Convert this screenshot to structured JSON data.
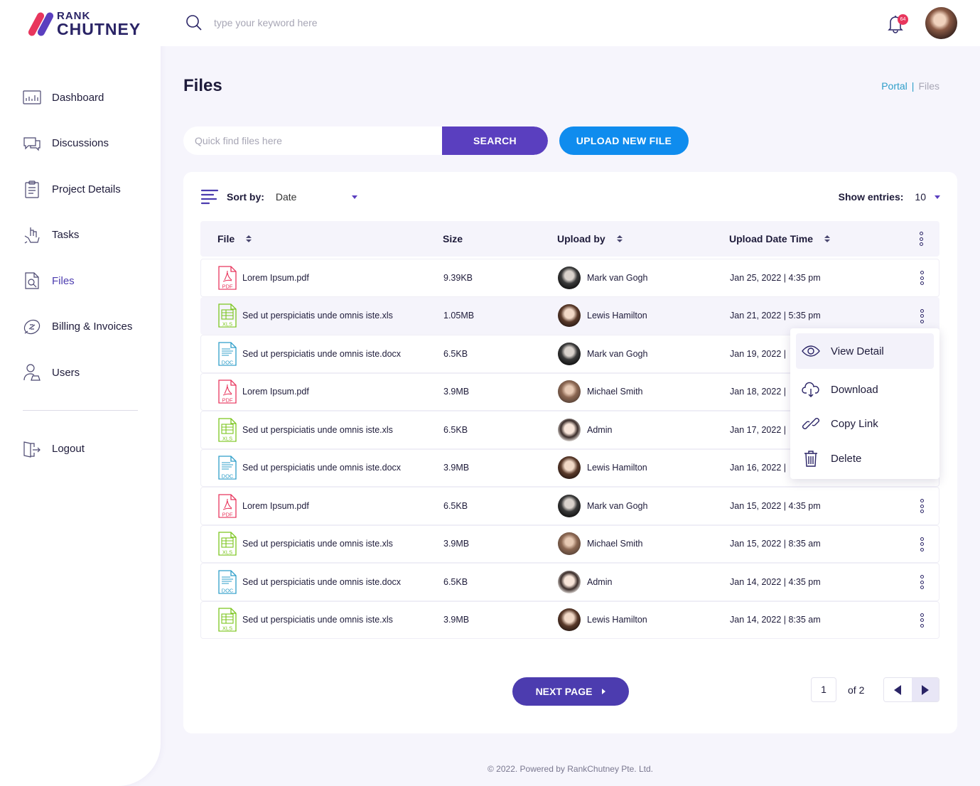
{
  "brand": {
    "line1": "RANK",
    "line2": "CHUTNEY"
  },
  "nav": [
    {
      "label": "Dashboard",
      "icon": "bar-chart-icon"
    },
    {
      "label": "Discussions",
      "icon": "chat-icon"
    },
    {
      "label": "Project Details",
      "icon": "clipboard-icon"
    },
    {
      "label": "Tasks",
      "icon": "hand-task-icon"
    },
    {
      "label": "Files",
      "icon": "file-search-icon",
      "active": true
    },
    {
      "label": "Billing & Invoices",
      "icon": "billing-icon"
    },
    {
      "label": "Users",
      "icon": "user-icon"
    }
  ],
  "logout_label": "Logout",
  "topbar": {
    "search_placeholder": "type your keyword here",
    "notification_count": "64"
  },
  "page": {
    "title": "Files",
    "breadcrumb": [
      "Portal",
      "Files"
    ]
  },
  "quick_search": {
    "placeholder": "Quick find files here",
    "button": "SEARCH"
  },
  "upload_button": "UPLOAD NEW FILE",
  "sort": {
    "label": "Sort by:",
    "value": "Date"
  },
  "entries": {
    "label": "Show entries:",
    "value": "10"
  },
  "table": {
    "headers": [
      "File",
      "Size",
      "Upload by",
      "Upload Date Time"
    ],
    "rows": [
      {
        "type": "PDF",
        "name": "Lorem Ipsum.pdf",
        "size": "9.39KB",
        "user": "Mark van Gogh",
        "date": "Jan 25, 2022  |  4:35 pm"
      },
      {
        "type": "XLS",
        "name": "Sed ut perspiciatis unde omnis iste.xls",
        "size": "1.05MB",
        "user": "Lewis Hamilton",
        "date": "Jan 21, 2022  |  5:35 pm"
      },
      {
        "type": "DOC",
        "name": "Sed ut perspiciatis unde omnis iste.docx",
        "size": "6.5KB",
        "user": "Mark van Gogh",
        "date": "Jan 19, 2022  |"
      },
      {
        "type": "PDF",
        "name": "Lorem Ipsum.pdf",
        "size": "3.9MB",
        "user": "Michael Smith",
        "date": "Jan 18, 2022  |"
      },
      {
        "type": "XLS",
        "name": "Sed ut perspiciatis unde omnis iste.xls",
        "size": "6.5KB",
        "user": "Admin",
        "date": "Jan 17, 2022  |"
      },
      {
        "type": "DOC",
        "name": "Sed ut perspiciatis unde omnis iste.docx",
        "size": "3.9MB",
        "user": "Lewis Hamilton",
        "date": "Jan 16, 2022  |"
      },
      {
        "type": "PDF",
        "name": "Lorem Ipsum.pdf",
        "size": "6.5KB",
        "user": "Mark van Gogh",
        "date": "Jan 15, 2022  |  4:35 pm"
      },
      {
        "type": "XLS",
        "name": "Sed ut perspiciatis unde omnis iste.xls",
        "size": "3.9MB",
        "user": "Michael Smith",
        "date": "Jan 15, 2022  |  8:35 am"
      },
      {
        "type": "DOC",
        "name": "Sed ut perspiciatis unde omnis iste.docx",
        "size": "6.5KB",
        "user": "Admin",
        "date": "Jan 14, 2022  |  4:35 pm"
      },
      {
        "type": "XLS",
        "name": "Sed ut perspiciatis unde omnis iste.xls",
        "size": "3.9MB",
        "user": "Lewis Hamilton",
        "date": "Jan 14, 2022  |  8:35 am"
      }
    ]
  },
  "row_menu": [
    "View Detail",
    "Download",
    "Copy Link",
    "Delete"
  ],
  "pagination": {
    "next_label": "NEXT PAGE",
    "current_page": "1",
    "of_text": "of 2"
  },
  "footer": "© 2022. Powered by RankChutney Pte. Ltd.",
  "colors": {
    "primary": "#5a3fbf",
    "accent_blue": "#0f8cee",
    "pdf": "#e8365d",
    "xls": "#7cc51f",
    "doc": "#2e9ec9"
  }
}
